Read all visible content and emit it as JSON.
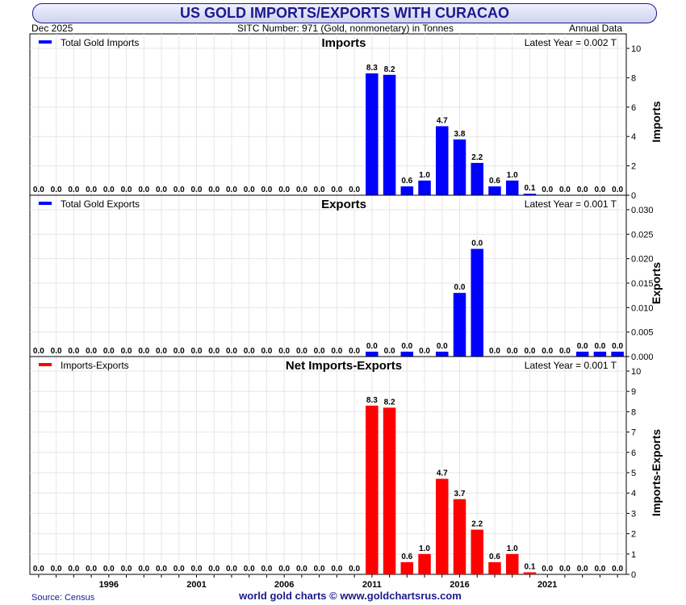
{
  "header": {
    "title": "US GOLD IMPORTS/EXPORTS WITH CURACAO",
    "date": "Dec  2025",
    "sitc": "SITC Number: 971 (Gold, nonmonetary) in Tonnes",
    "frequency": "Annual Data"
  },
  "footer": {
    "source": "Source: Census",
    "credit": "world gold charts © www.goldchartsrus.com"
  },
  "colors": {
    "imports": "#0000ff",
    "exports": "#0000ff",
    "net": "#ff0000",
    "title": "#1a1a8c"
  },
  "chart_data": [
    {
      "type": "bar",
      "title": "Imports",
      "legend": "Total Gold Imports",
      "latest": "Latest Year = 0.002 T",
      "ylabel": "Imports",
      "ylim": [
        0,
        10
      ],
      "yticks": [
        "0",
        "2",
        "4",
        "6",
        "8",
        "10"
      ],
      "x": [
        1992,
        1993,
        1994,
        1995,
        1996,
        1997,
        1998,
        1999,
        2000,
        2001,
        2002,
        2003,
        2004,
        2005,
        2006,
        2007,
        2008,
        2009,
        2010,
        2011,
        2012,
        2013,
        2014,
        2015,
        2016,
        2017,
        2018,
        2019,
        2020,
        2021,
        2022,
        2023,
        2024,
        2025
      ],
      "values": [
        0,
        0,
        0,
        0,
        0,
        0,
        0,
        0,
        0,
        0,
        0,
        0,
        0,
        0,
        0,
        0,
        0,
        0,
        0,
        8.3,
        8.2,
        0.6,
        1.0,
        4.7,
        3.8,
        2.2,
        0.6,
        1.0,
        0.1,
        0,
        0,
        0,
        0,
        0.002
      ],
      "labels": [
        "0.0",
        "0.0",
        "0.0",
        "0.0",
        "0.0",
        "0.0",
        "0.0",
        "0.0",
        "0.0",
        "0.0",
        "0.0",
        "0.0",
        "0.0",
        "0.0",
        "0.0",
        "0.0",
        "0.0",
        "0.0",
        "0.0",
        "8.3",
        "8.2",
        "0.6",
        "1.0",
        "4.7",
        "3.8",
        "2.2",
        "0.6",
        "1.0",
        "0.1",
        "0.0",
        "0.0",
        "0.0",
        "0.0",
        "0.0"
      ]
    },
    {
      "type": "bar",
      "title": "Exports",
      "legend": "Total Gold Exports",
      "latest": "Latest Year = 0.001 T",
      "ylabel": "Exports",
      "ylim": [
        0,
        0.03
      ],
      "yticks": [
        "0.000",
        "0.005",
        "0.010",
        "0.015",
        "0.020",
        "0.025",
        "0.030"
      ],
      "x": [
        1992,
        1993,
        1994,
        1995,
        1996,
        1997,
        1998,
        1999,
        2000,
        2001,
        2002,
        2003,
        2004,
        2005,
        2006,
        2007,
        2008,
        2009,
        2010,
        2011,
        2012,
        2013,
        2014,
        2015,
        2016,
        2017,
        2018,
        2019,
        2020,
        2021,
        2022,
        2023,
        2024,
        2025
      ],
      "values": [
        0,
        0,
        0,
        0,
        0,
        0,
        0,
        0,
        0,
        0,
        0,
        0,
        0,
        0,
        0,
        0,
        0,
        0,
        0,
        0.001,
        0,
        0.001,
        0,
        0.001,
        0.013,
        0.022,
        0,
        0,
        0,
        0,
        0,
        0.001,
        0.001,
        0.001
      ],
      "labels": [
        "0.0",
        "0.0",
        "0.0",
        "0.0",
        "0.0",
        "0.0",
        "0.0",
        "0.0",
        "0.0",
        "0.0",
        "0.0",
        "0.0",
        "0.0",
        "0.0",
        "0.0",
        "0.0",
        "0.0",
        "0.0",
        "0.0",
        "0.0",
        "0.0",
        "0.0",
        "0.0",
        "0.0",
        "0.0",
        "0.0",
        "0.0",
        "0.0",
        "0.0",
        "0.0",
        "0.0",
        "0.0",
        "0.0",
        "0.0"
      ]
    },
    {
      "type": "bar",
      "title": "Net Imports-Exports",
      "legend": "Imports-Exports",
      "latest": "Latest Year = 0.001 T",
      "ylabel": "Imports-Exports",
      "ylim": [
        0,
        10
      ],
      "yticks": [
        "0",
        "1",
        "2",
        "3",
        "4",
        "5",
        "6",
        "7",
        "8",
        "9",
        "10"
      ],
      "x": [
        1992,
        1993,
        1994,
        1995,
        1996,
        1997,
        1998,
        1999,
        2000,
        2001,
        2002,
        2003,
        2004,
        2005,
        2006,
        2007,
        2008,
        2009,
        2010,
        2011,
        2012,
        2013,
        2014,
        2015,
        2016,
        2017,
        2018,
        2019,
        2020,
        2021,
        2022,
        2023,
        2024,
        2025
      ],
      "values": [
        0,
        0,
        0,
        0,
        0,
        0,
        0,
        0,
        0,
        0,
        0,
        0,
        0,
        0,
        0,
        0,
        0,
        0,
        0,
        8.3,
        8.2,
        0.6,
        1.0,
        4.7,
        3.7,
        2.2,
        0.6,
        1.0,
        0.1,
        0,
        0,
        0,
        0,
        0.001
      ],
      "labels": [
        "0.0",
        "0.0",
        "0.0",
        "0.0",
        "0.0",
        "0.0",
        "0.0",
        "0.0",
        "0.0",
        "0.0",
        "0.0",
        "0.0",
        "0.0",
        "0.0",
        "0.0",
        "0.0",
        "0.0",
        "0.0",
        "0.0",
        "8.3",
        "8.2",
        "0.6",
        "1.0",
        "4.7",
        "3.7",
        "2.2",
        "0.6",
        "1.0",
        "0.1",
        "0.0",
        "0.0",
        "0.0",
        "0.0",
        "0.0"
      ]
    }
  ],
  "x_axis": {
    "ticks": [
      "1996",
      "2001",
      "2006",
      "2011",
      "2016",
      "2021"
    ]
  }
}
